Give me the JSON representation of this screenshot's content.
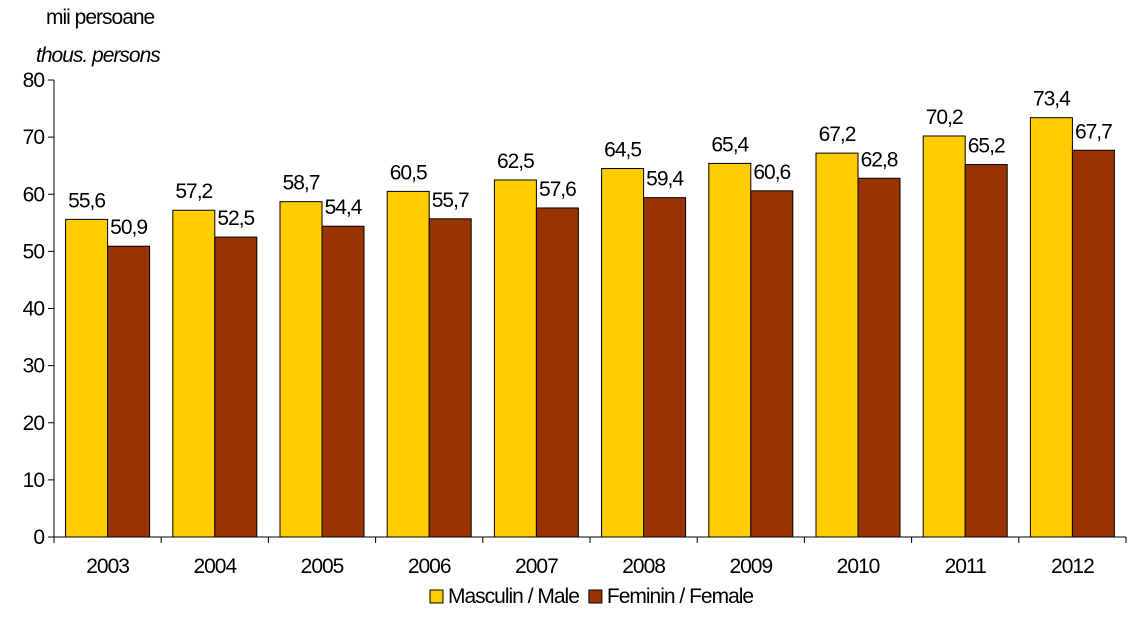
{
  "chart_data": {
    "type": "bar",
    "unit_ro": "mii persoane",
    "unit_en": "thous. persons",
    "categories": [
      "2003",
      "2004",
      "2005",
      "2006",
      "2007",
      "2008",
      "2009",
      "2010",
      "2011",
      "2012"
    ],
    "series": [
      {
        "name": "Masculin / Male",
        "color": "#FFCC00",
        "values": [
          55.6,
          57.2,
          58.7,
          60.5,
          62.5,
          64.5,
          65.4,
          67.2,
          70.2,
          73.4
        ],
        "labels": [
          "55,6",
          "57,2",
          "58,7",
          "60,5",
          "62,5",
          "64,5",
          "65,4",
          "67,2",
          "70,2",
          "73,4"
        ]
      },
      {
        "name": "Feminin / Female",
        "color": "#993300",
        "values": [
          50.9,
          52.5,
          54.4,
          55.7,
          57.6,
          59.4,
          60.6,
          62.8,
          65.2,
          67.7
        ],
        "labels": [
          "50,9",
          "52,5",
          "54,4",
          "55,7",
          "57,6",
          "59,4",
          "60,6",
          "62,8",
          "65,2",
          "67,7"
        ]
      }
    ],
    "ylim": [
      0,
      80
    ],
    "yticks": [
      0,
      10,
      20,
      30,
      40,
      50,
      60,
      70,
      80
    ],
    "grid": false,
    "legend_position": "bottom"
  }
}
